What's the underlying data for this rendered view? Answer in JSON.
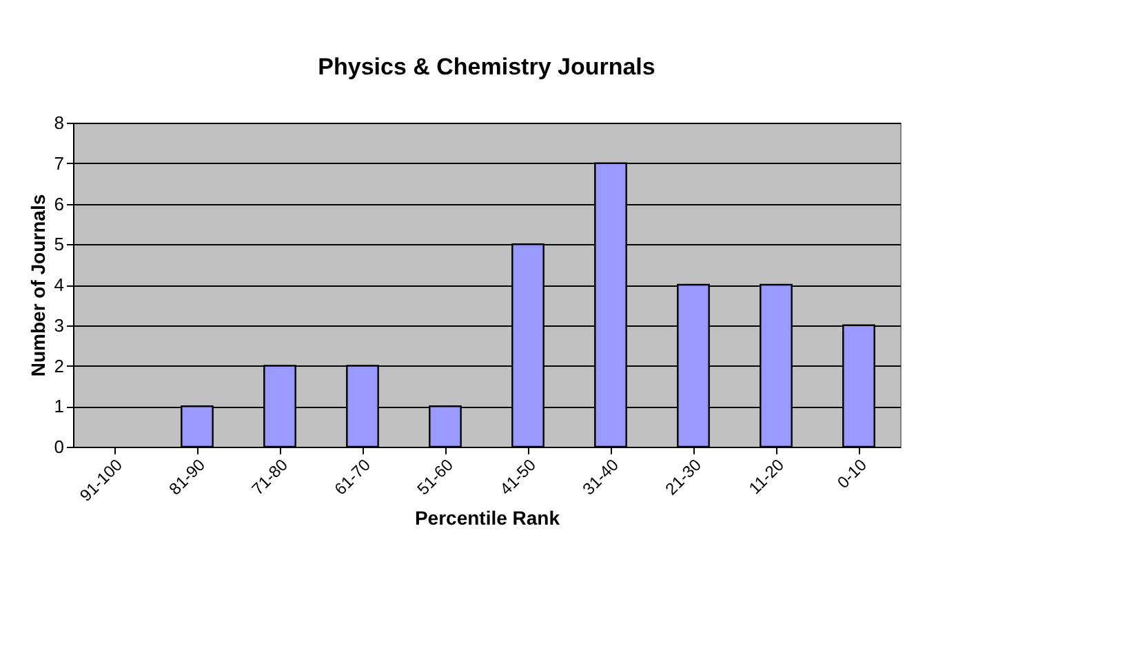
{
  "chart_data": {
    "type": "bar",
    "title": "Physics & Chemistry Journals",
    "xlabel": "Percentile Rank",
    "ylabel": "Number of Journals",
    "categories": [
      "91-100",
      "81-90",
      "71-80",
      "61-70",
      "51-60",
      "41-50",
      "31-40",
      "21-30",
      "11-20",
      "0-10"
    ],
    "values": [
      0,
      1,
      2,
      2,
      1,
      5,
      7,
      4,
      4,
      3
    ],
    "color": "#9999ff",
    "ylim": [
      0,
      8
    ],
    "yticks": [
      0,
      1,
      2,
      3,
      4,
      5,
      6,
      7,
      8
    ],
    "grid": "y"
  }
}
